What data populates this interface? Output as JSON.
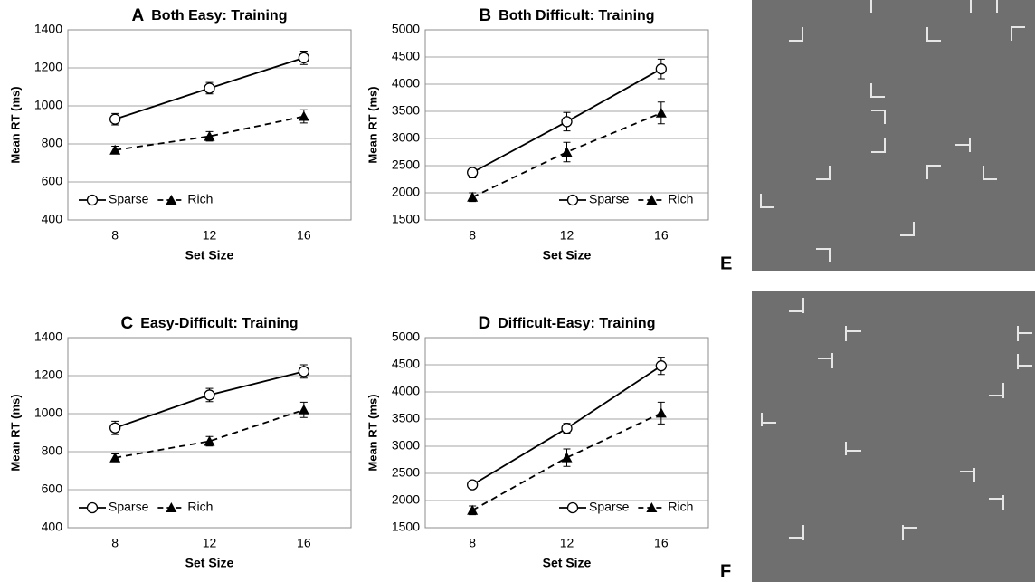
{
  "chart_data": [
    {
      "type": "line",
      "panel": "A",
      "title": "Both Easy: Training",
      "x_label": "Set Size",
      "y_label": "Mean RT (ms)",
      "categories": [
        "8",
        "12",
        "16"
      ],
      "ylim": [
        400,
        1400
      ],
      "yticks": [
        400,
        600,
        800,
        1000,
        1200,
        1400
      ],
      "grid": true,
      "legend": "lower left",
      "series": [
        {
          "name": "Sparse",
          "color": "#000000",
          "line_style": "solid",
          "marker": "circle",
          "values": [
            930,
            1093,
            1253
          ],
          "errors": [
            30,
            30,
            35
          ]
        },
        {
          "name": "Rich",
          "color": "#000000",
          "line_style": "dashed",
          "marker": "triangle",
          "values": [
            768,
            840,
            945
          ],
          "errors": [
            20,
            25,
            35
          ]
        }
      ]
    },
    {
      "type": "line",
      "panel": "B",
      "title": "Both Difficult: Training",
      "x_label": "Set Size",
      "y_label": "Mean RT (ms)",
      "categories": [
        "8",
        "12",
        "16"
      ],
      "ylim": [
        1500,
        5000
      ],
      "yticks": [
        1500,
        2000,
        2500,
        3000,
        3500,
        4000,
        4500,
        5000
      ],
      "grid": true,
      "legend": "lower right",
      "series": [
        {
          "name": "Sparse",
          "color": "#000000",
          "line_style": "solid",
          "marker": "circle",
          "values": [
            2375,
            3310,
            4280
          ],
          "errors": [
            100,
            170,
            180
          ]
        },
        {
          "name": "Rich",
          "color": "#000000",
          "line_style": "dashed",
          "marker": "triangle",
          "values": [
            1920,
            2750,
            3470
          ],
          "errors": [
            80,
            180,
            200
          ]
        }
      ]
    },
    {
      "type": "line",
      "panel": "C",
      "title": "Easy-Difficult: Training",
      "x_label": "Set Size",
      "y_label": "Mean RT (ms)",
      "categories": [
        "8",
        "12",
        "16"
      ],
      "ylim": [
        400,
        1400
      ],
      "yticks": [
        400,
        600,
        800,
        1000,
        1200,
        1400
      ],
      "grid": true,
      "legend": "lower left",
      "series": [
        {
          "name": "Sparse",
          "color": "#000000",
          "line_style": "solid",
          "marker": "circle",
          "values": [
            925,
            1098,
            1222
          ],
          "errors": [
            35,
            35,
            35
          ]
        },
        {
          "name": "Rich",
          "color": "#000000",
          "line_style": "dashed",
          "marker": "triangle",
          "values": [
            768,
            855,
            1020
          ],
          "errors": [
            20,
            25,
            40
          ]
        }
      ]
    },
    {
      "type": "line",
      "panel": "D",
      "title": "Difficult-Easy: Training",
      "x_label": "Set Size",
      "y_label": "Mean RT (ms)",
      "categories": [
        "8",
        "12",
        "16"
      ],
      "ylim": [
        1500,
        5000
      ],
      "yticks": [
        1500,
        2000,
        2500,
        3000,
        3500,
        4000,
        4500,
        5000
      ],
      "grid": true,
      "legend": "lower right",
      "series": [
        {
          "name": "Sparse",
          "color": "#000000",
          "line_style": "solid",
          "marker": "circle",
          "values": [
            2290,
            3330,
            4480
          ],
          "errors": [
            50,
            90,
            160
          ]
        },
        {
          "name": "Rich",
          "color": "#000000",
          "line_style": "dashed",
          "marker": "triangle",
          "values": [
            1820,
            2790,
            3610
          ],
          "errors": [
            80,
            160,
            200
          ]
        }
      ]
    }
  ],
  "panels": [
    {
      "label": "E"
    },
    {
      "label": "F"
    }
  ]
}
